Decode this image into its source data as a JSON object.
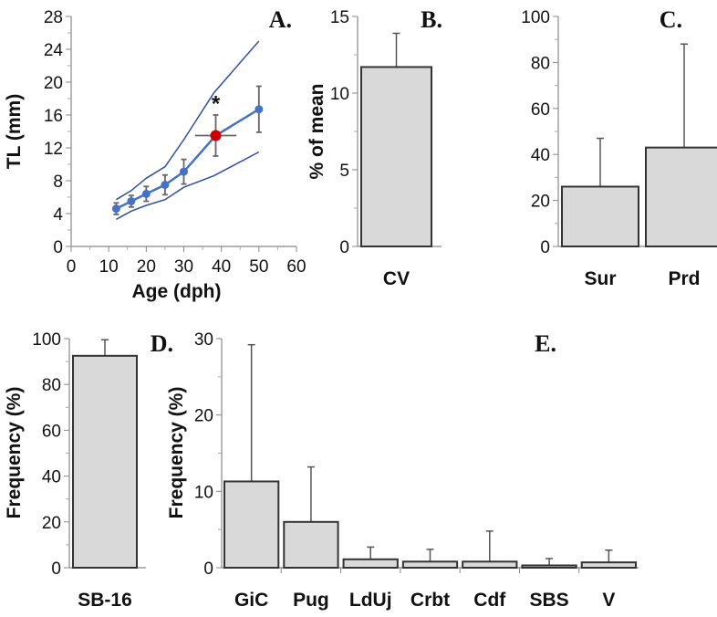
{
  "chart_data": [
    {
      "id": "A",
      "panel_label": "A.",
      "type": "line",
      "xlabel": "Age (dph)",
      "ylabel": "TL (mm)",
      "xlim": [
        0,
        60
      ],
      "ylim": [
        0,
        28
      ],
      "xticks": [
        0,
        10,
        20,
        30,
        40,
        50,
        60
      ],
      "yticks": [
        0,
        4,
        8,
        12,
        16,
        20,
        24,
        28
      ],
      "series": [
        {
          "name": "mean",
          "color": "#4472C4",
          "x": [
            12,
            16,
            20,
            25,
            30,
            38.5,
            50
          ],
          "y": [
            4.6,
            5.5,
            6.4,
            7.5,
            9.1,
            13.5,
            16.7
          ],
          "yerr": [
            0.7,
            0.7,
            0.9,
            1.2,
            1.5,
            2.5,
            2.8
          ]
        },
        {
          "name": "upper",
          "color": "#2F4FA0",
          "x": [
            12,
            16,
            20,
            25,
            30,
            38,
            50
          ],
          "y": [
            5.7,
            6.8,
            8.3,
            9.7,
            13,
            18.7,
            25
          ]
        },
        {
          "name": "lower",
          "color": "#2F4FA0",
          "x": [
            12,
            16,
            20,
            25,
            30,
            38,
            50
          ],
          "y": [
            3.3,
            4.3,
            5,
            5.7,
            7.2,
            8.6,
            11.5
          ]
        }
      ],
      "highlight": {
        "x": 38.5,
        "y": 13.5,
        "xerr": 5.5,
        "color": "#D00000",
        "annotation": "*"
      }
    },
    {
      "id": "B",
      "panel_label": "B.",
      "type": "bar",
      "ylabel": "% of mean",
      "ylim": [
        0,
        15
      ],
      "yticks": [
        0,
        5,
        10,
        15
      ],
      "categories": [
        "CV"
      ],
      "values": [
        11.7
      ],
      "err_upper": [
        13.9
      ]
    },
    {
      "id": "C",
      "panel_label": "C.",
      "type": "bar",
      "ylabel": "",
      "ylim": [
        0,
        100
      ],
      "yticks": [
        0,
        20,
        40,
        60,
        80,
        100
      ],
      "categories": [
        "Sur",
        "Prd"
      ],
      "values": [
        26,
        43
      ],
      "err_upper": [
        47,
        88
      ]
    },
    {
      "id": "D",
      "panel_label": "D.",
      "type": "bar",
      "ylabel": "Frequency (%)",
      "ylim": [
        0,
        100
      ],
      "yticks": [
        0,
        20,
        40,
        60,
        80,
        100
      ],
      "categories": [
        "SB-16"
      ],
      "values": [
        92.5
      ],
      "err_upper": [
        99.5
      ]
    },
    {
      "id": "E",
      "panel_label": "E.",
      "type": "bar",
      "ylabel": "Frequency (%)",
      "ylim": [
        0,
        30
      ],
      "yticks": [
        0,
        10,
        20,
        30
      ],
      "categories": [
        "GiC",
        "Pug",
        "LdUj",
        "Crbt",
        "Cdf",
        "SBS",
        "V"
      ],
      "values": [
        11.3,
        6,
        1.1,
        0.8,
        0.8,
        0.3,
        0.7
      ],
      "err_upper": [
        29.2,
        13.2,
        2.7,
        2.4,
        4.8,
        1.2,
        2.3
      ]
    }
  ]
}
